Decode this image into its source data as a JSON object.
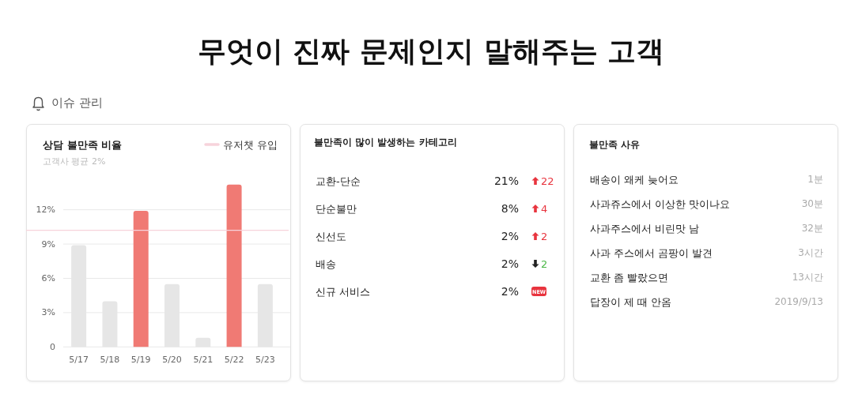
{
  "chart_data": [
    {
      "type": "other",
      "title": "무엇이 진짜 문제인지 말해주는 고객",
      "subtitle": "이슈 관리"
    },
    {
      "type": "bar",
      "title": "상담 불만족 비율",
      "subtitle": "고객사 평균 2%",
      "categories": [
        "5/17",
        "5/18",
        "5/19",
        "5/20",
        "5/21",
        "5/22",
        "5/23"
      ],
      "values": [
        8.9,
        4.0,
        11.9,
        5.5,
        0.8,
        14.2,
        5.5
      ],
      "colors": [
        "#e6e6e6",
        "#e6e6e6",
        "#f07a74",
        "#e6e6e6",
        "#e6e6e6",
        "#f07a74",
        "#e6e6e6"
      ],
      "ylim": [
        0,
        14.2
      ],
      "yticks": [
        0,
        {
          "value": 3,
          "label": "3%"
        },
        {
          "value": 6,
          "label": "6%"
        },
        {
          "value": 9,
          "label": "9%"
        },
        {
          "value": 12,
          "label": "12%"
        }
      ],
      "grid": "y",
      "ref_lines": [
        {
          "axis": "y",
          "value": 10.2,
          "label": "유저챗 유입",
          "color": "#f7d3db"
        }
      ],
      "legend": "top right"
    },
    {
      "type": "other",
      "title": "불만족이 많이 발생하는 카테고리",
      "categories": [
        "교환-단순",
        "단순불만",
        "신선도",
        "배송",
        "신규 서비스"
      ],
      "series": [
        {
          "values": [
            21,
            8,
            2,
            2,
            2
          ],
          "value_labels": [
            "21%",
            "8%",
            "2%",
            "2%",
            "2%"
          ]
        },
        {
          "values": [
            22,
            4,
            2,
            null,
            null
          ],
          "value_labels": [
            "22",
            "4",
            "2",
            null,
            "NEW"
          ],
          "color": "#e8343e"
        },
        {
          "values": [
            null,
            null,
            null,
            2,
            null
          ],
          "value_labels": [
            null,
            null,
            null,
            "2",
            null
          ],
          "color": "#4cb848"
        }
      ]
    },
    {
      "type": "other",
      "title": "불만족 사유",
      "categories": [
        "배송이 왜케 늦어요",
        "사과쥬스에서 이상한 맛이나요",
        "사과주스에서 비린맛 남",
        "사과 주스에서 곰팡이 발견",
        "교환 좀 빨랐으면",
        "답장이 제 때 안옴"
      ],
      "annotations": [
        "1분",
        "30분",
        "32분",
        "3시간",
        "13시간",
        "2019/9/13"
      ]
    }
  ]
}
